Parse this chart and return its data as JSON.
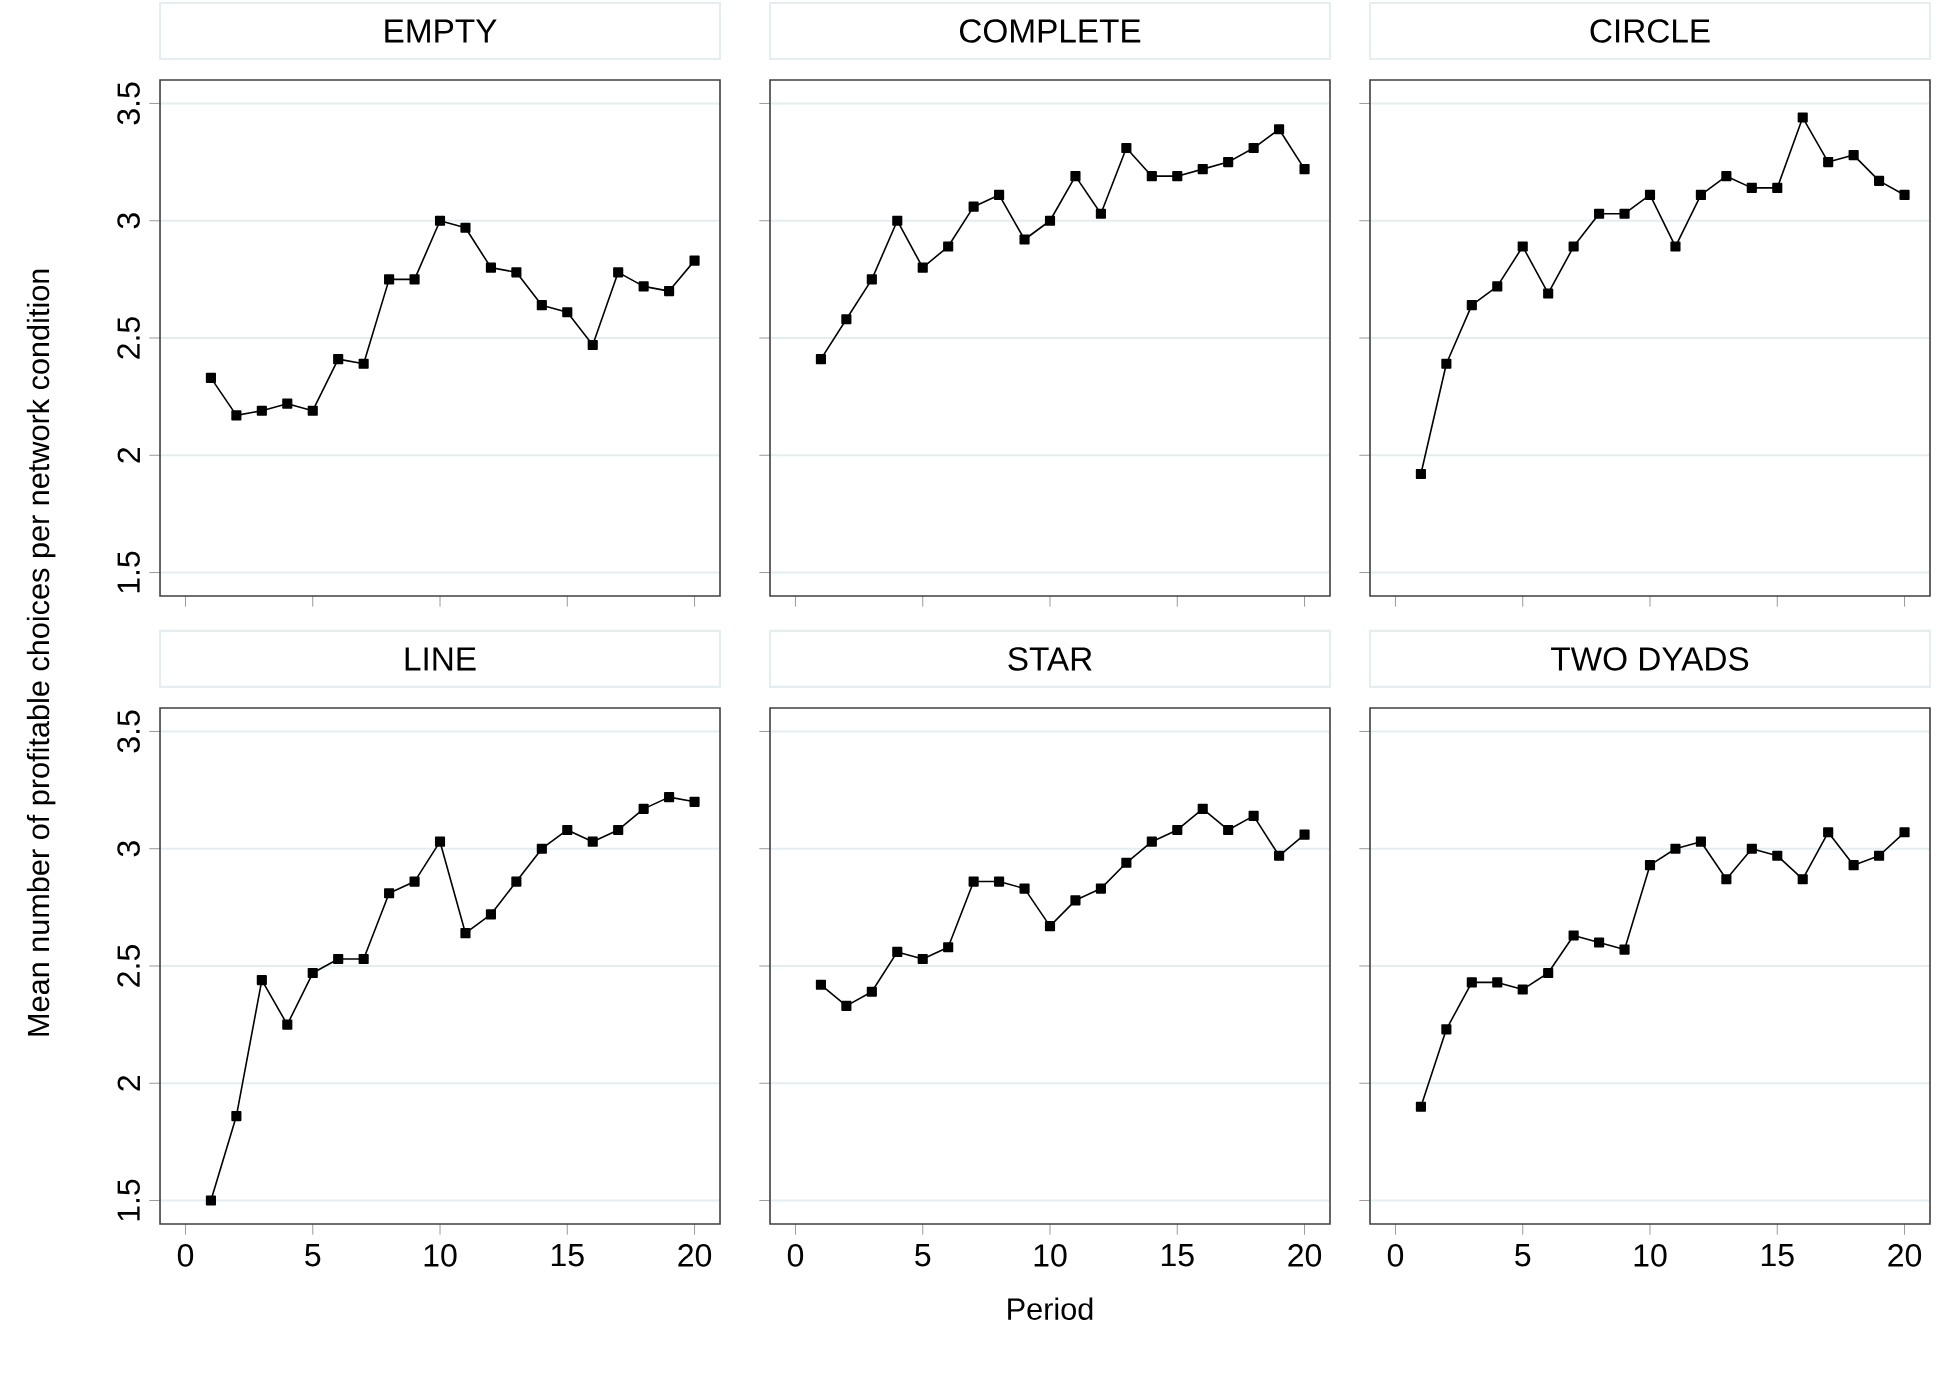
{
  "chart_data": [
    {
      "type": "line",
      "title": "EMPTY",
      "ylabel": "Mean number of profitable choices per network condition",
      "x": [
        1,
        2,
        3,
        4,
        5,
        6,
        7,
        8,
        9,
        10,
        11,
        12,
        13,
        14,
        15,
        16,
        17,
        18,
        19,
        20
      ],
      "values": [
        2.33,
        2.17,
        2.19,
        2.22,
        2.19,
        2.41,
        2.39,
        2.75,
        2.75,
        3.0,
        2.97,
        2.8,
        2.78,
        2.64,
        2.61,
        2.47,
        2.78,
        2.72,
        2.7,
        2.83
      ],
      "color": "#000000",
      "marker": "square",
      "grid": "y",
      "xlim": [
        -1,
        21
      ],
      "ylim": [
        1.4,
        3.6
      ],
      "xticks": [
        0,
        5,
        10,
        15,
        20
      ],
      "yticks": [
        1.5,
        2,
        2.5,
        3,
        3.5
      ],
      "tick_labels": "y"
    },
    {
      "type": "line",
      "title": "COMPLETE",
      "x": [
        1,
        2,
        3,
        4,
        5,
        6,
        7,
        8,
        9,
        10,
        11,
        12,
        13,
        14,
        15,
        16,
        17,
        18,
        19,
        20
      ],
      "values": [
        2.41,
        2.58,
        2.75,
        3.0,
        2.8,
        2.89,
        3.06,
        3.11,
        2.92,
        3.0,
        3.19,
        3.03,
        3.31,
        3.19,
        3.19,
        3.22,
        3.25,
        3.31,
        3.39,
        3.22
      ],
      "color": "#000000",
      "marker": "square",
      "grid": "y",
      "xlim": [
        -1,
        21
      ],
      "ylim": [
        1.4,
        3.6
      ],
      "xticks": [
        0,
        5,
        10,
        15,
        20
      ],
      "yticks": [
        1.5,
        2,
        2.5,
        3,
        3.5
      ],
      "tick_labels": false
    },
    {
      "type": "line",
      "title": "CIRCLE",
      "x": [
        1,
        2,
        3,
        4,
        5,
        6,
        7,
        8,
        9,
        10,
        11,
        12,
        13,
        14,
        15,
        16,
        17,
        18,
        19,
        20
      ],
      "values": [
        1.92,
        2.39,
        2.64,
        2.72,
        2.89,
        2.69,
        2.89,
        3.03,
        3.03,
        3.11,
        2.89,
        3.11,
        3.19,
        3.14,
        3.14,
        3.44,
        3.25,
        3.28,
        3.17,
        3.11
      ],
      "color": "#000000",
      "marker": "square",
      "grid": "y",
      "xlim": [
        -1,
        21
      ],
      "ylim": [
        1.4,
        3.6
      ],
      "xticks": [
        0,
        5,
        10,
        15,
        20
      ],
      "yticks": [
        1.5,
        2,
        2.5,
        3,
        3.5
      ],
      "tick_labels": false
    },
    {
      "type": "line",
      "title": "LINE",
      "x": [
        1,
        2,
        3,
        4,
        5,
        6,
        7,
        8,
        9,
        10,
        11,
        12,
        13,
        14,
        15,
        16,
        17,
        18,
        19,
        20
      ],
      "values": [
        1.5,
        1.86,
        2.44,
        2.25,
        2.47,
        2.53,
        2.53,
        2.81,
        2.86,
        3.03,
        2.64,
        2.72,
        2.86,
        3.0,
        3.08,
        3.03,
        3.08,
        3.17,
        3.22,
        3.2
      ],
      "color": "#000000",
      "marker": "square",
      "grid": "y",
      "xlim": [
        -1,
        21
      ],
      "ylim": [
        1.4,
        3.6
      ],
      "xticks": [
        0,
        5,
        10,
        15,
        20
      ],
      "yticks": [
        1.5,
        2,
        2.5,
        3,
        3.5
      ]
    },
    {
      "type": "line",
      "title": "STAR",
      "xlabel": "Period",
      "x": [
        1,
        2,
        3,
        4,
        5,
        6,
        7,
        8,
        9,
        10,
        11,
        12,
        13,
        14,
        15,
        16,
        17,
        18,
        19,
        20
      ],
      "values": [
        2.42,
        2.33,
        2.39,
        2.56,
        2.53,
        2.58,
        2.86,
        2.86,
        2.83,
        2.67,
        2.78,
        2.83,
        2.94,
        3.03,
        3.08,
        3.17,
        3.08,
        3.14,
        2.97,
        3.06
      ],
      "color": "#000000",
      "marker": "square",
      "grid": "y",
      "xlim": [
        -1,
        21
      ],
      "ylim": [
        1.4,
        3.6
      ],
      "xticks": [
        0,
        5,
        10,
        15,
        20
      ],
      "yticks": [
        1.5,
        2,
        2.5,
        3,
        3.5
      ],
      "tick_labels": "x"
    },
    {
      "type": "line",
      "title": "TWO DYADS",
      "x": [
        1,
        2,
        3,
        4,
        5,
        6,
        7,
        8,
        9,
        10,
        11,
        12,
        13,
        14,
        15,
        16,
        17,
        18,
        19,
        20
      ],
      "values": [
        1.9,
        2.23,
        2.43,
        2.43,
        2.4,
        2.47,
        2.63,
        2.6,
        2.57,
        2.93,
        3.0,
        3.03,
        2.87,
        3.0,
        2.97,
        2.87,
        3.07,
        2.93,
        2.97,
        3.07
      ],
      "color": "#000000",
      "marker": "square",
      "grid": "y",
      "xlim": [
        -1,
        21
      ],
      "ylim": [
        1.4,
        3.6
      ],
      "xticks": [
        0,
        5,
        10,
        15,
        20
      ],
      "yticks": [
        1.5,
        2,
        2.5,
        3,
        3.5
      ],
      "tick_labels": "x"
    }
  ]
}
